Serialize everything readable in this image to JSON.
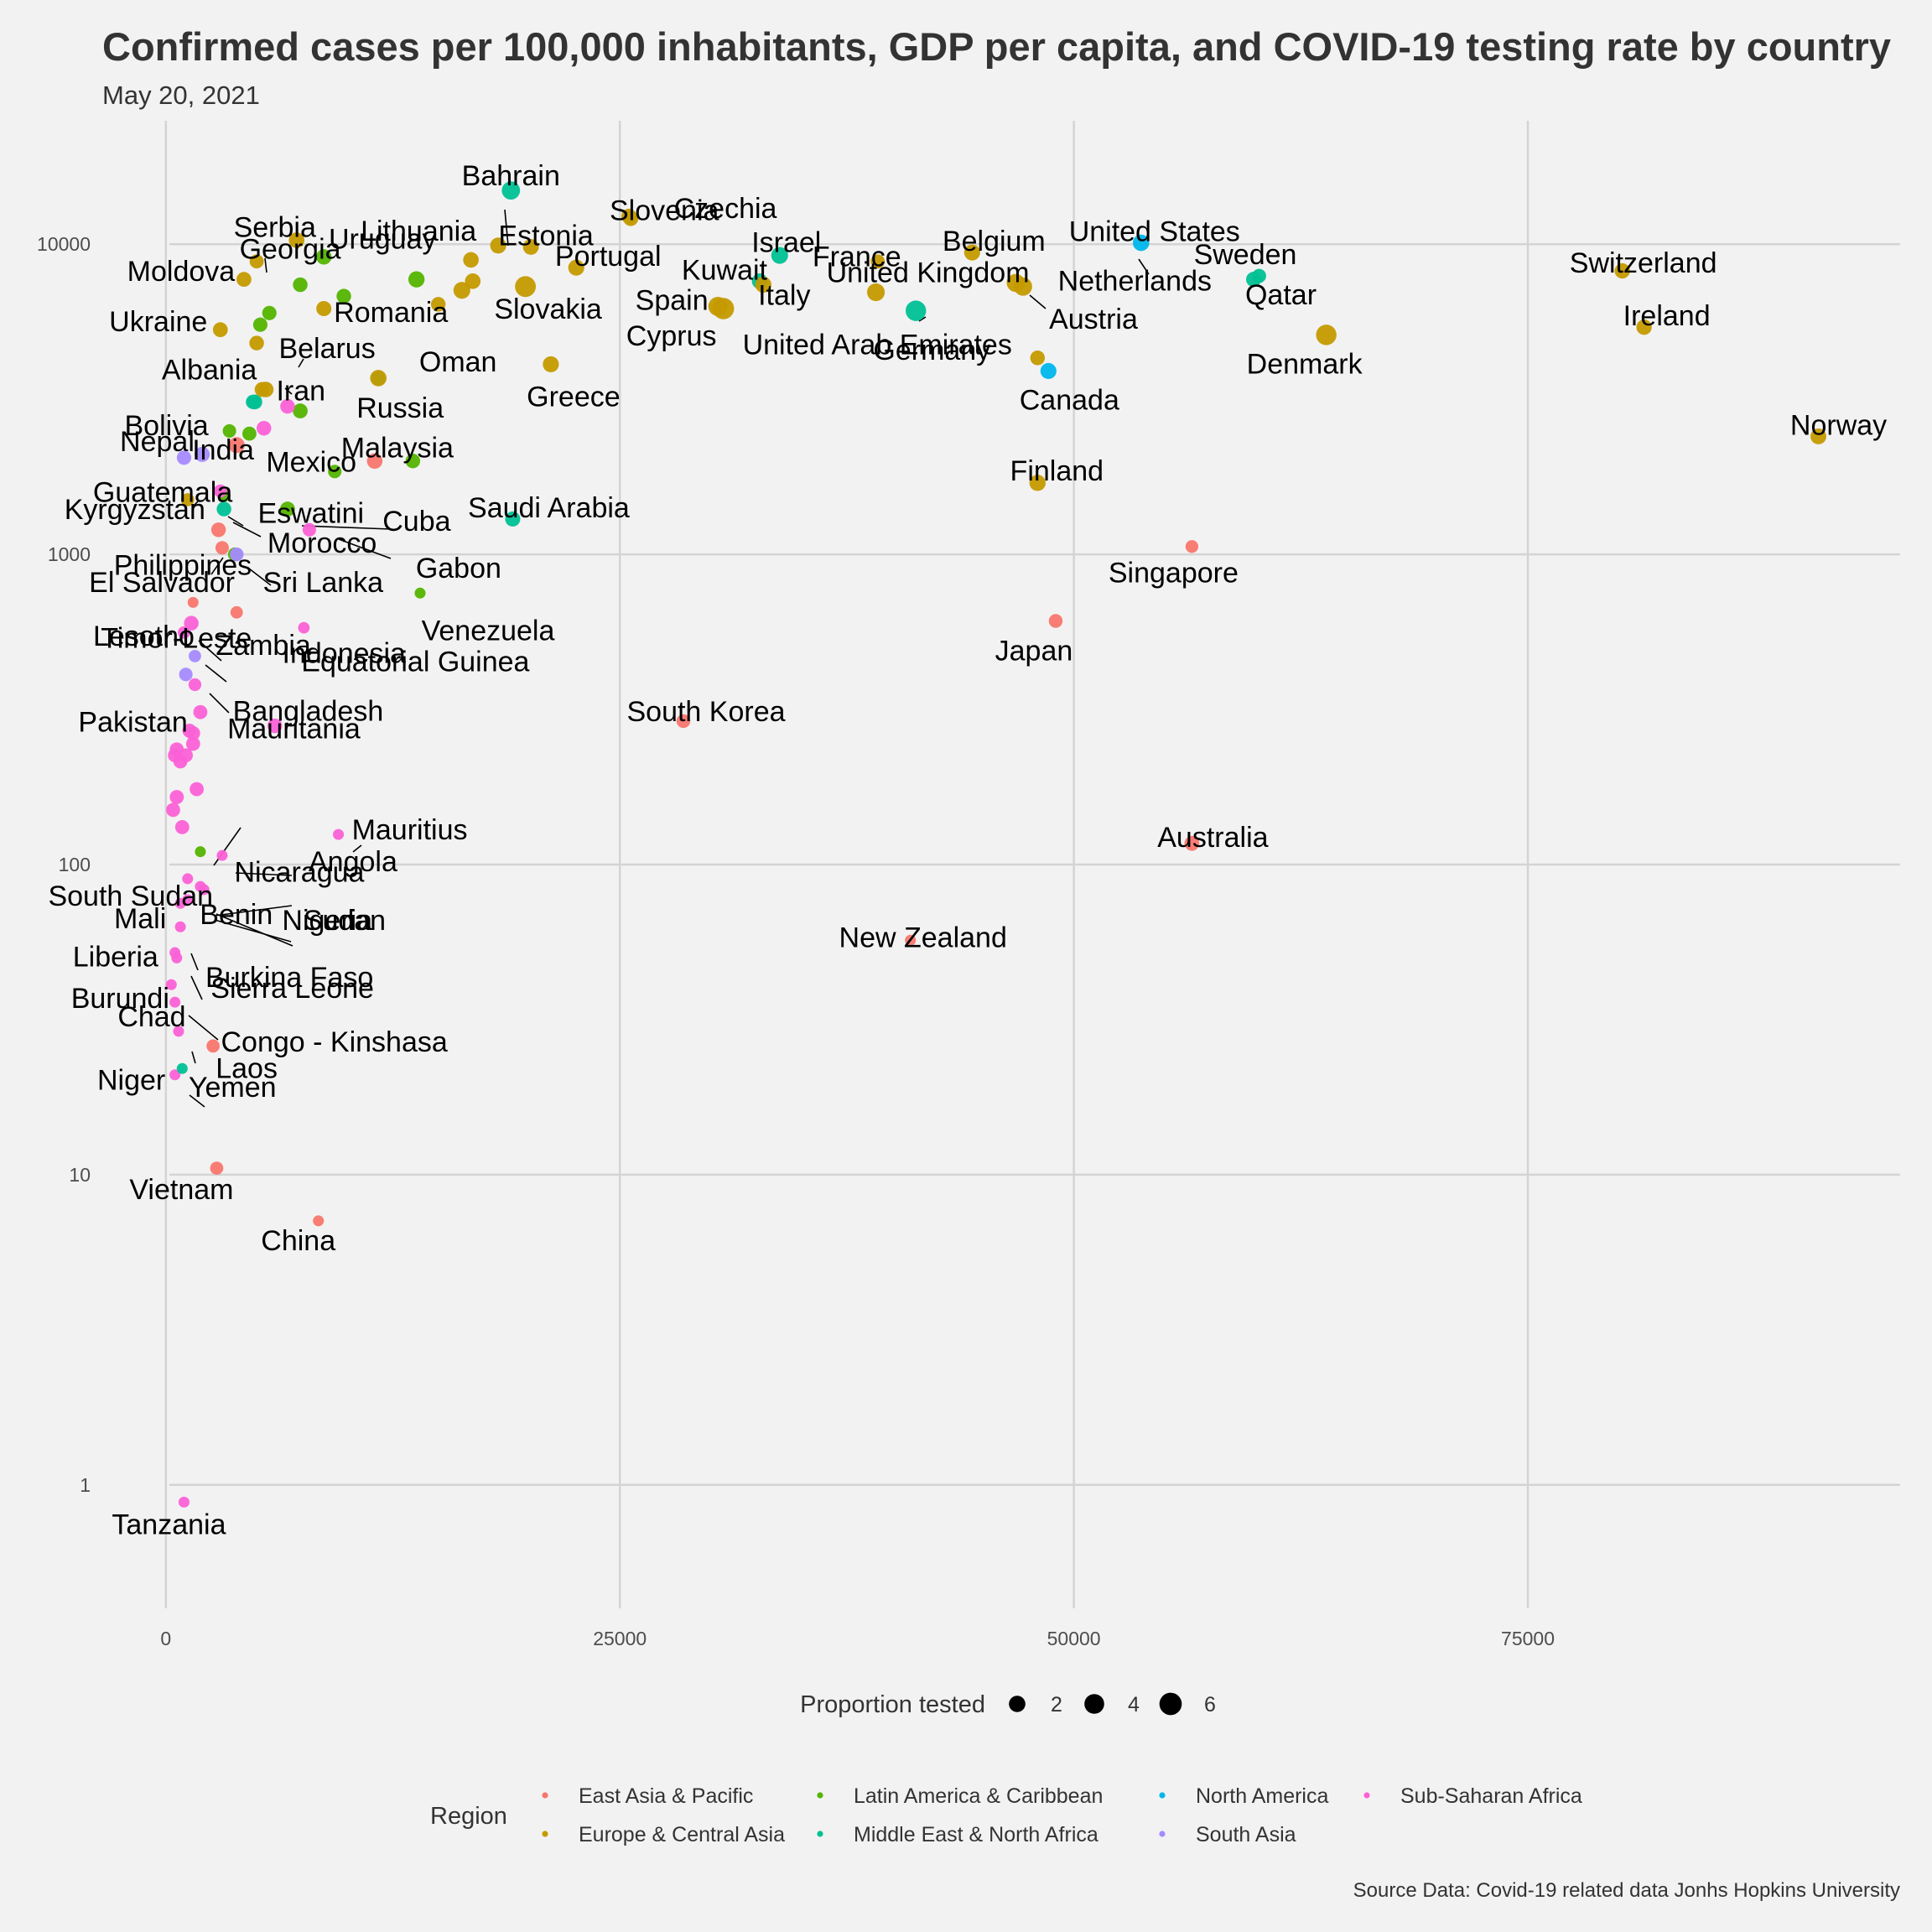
{
  "chart_data": {
    "type": "scatter",
    "title": "Confirmed cases per 100,000 inhabitants, GDP per capita, and COVID-19 testing rate by country",
    "subtitle": "May 20, 2021",
    "xlabel": "",
    "ylabel": "",
    "x_scale": "linear",
    "y_scale": "log10",
    "xlim": [
      -3500,
      95500
    ],
    "ylim": [
      0.4,
      25000
    ],
    "x_ticks": [
      0,
      25000,
      50000,
      75000
    ],
    "y_ticks": [
      1,
      10,
      100,
      1000,
      10000
    ],
    "grid": true,
    "size_legend": {
      "title": "Proportion tested",
      "values": [
        2,
        4,
        6
      ]
    },
    "color_legend": {
      "title": "Region",
      "position": "bottom",
      "entries": [
        {
          "name": "East Asia & Pacific",
          "color": "#F8766D"
        },
        {
          "name": "Europe & Central Asia",
          "color": "#C49A00"
        },
        {
          "name": "Latin America & Caribbean",
          "color": "#53B400"
        },
        {
          "name": "Middle East & North Africa",
          "color": "#00C094"
        },
        {
          "name": "North America",
          "color": "#00B6EB"
        },
        {
          "name": "South Asia",
          "color": "#A58AFF"
        },
        {
          "name": "Sub-Saharan Africa",
          "color": "#FB61D7"
        }
      ]
    },
    "caption": "Source Data: Covid-19 related data Jonhs Hopkins University",
    "labeled_points": [
      {
        "name": "Bahrain",
        "region": 3,
        "x": 19000,
        "y": 14900,
        "tested": 3.0
      },
      {
        "name": "Czechia",
        "region": 1,
        "x": 25500,
        "y": 12300,
        "tested": 1.4
      },
      {
        "name": "Slovenia",
        "region": 1,
        "x": 25600,
        "y": 12100,
        "tested": 1.4
      },
      {
        "name": "Lithuania",
        "region": 1,
        "x": 18300,
        "y": 9900,
        "tested": 1.8
      },
      {
        "name": "Estonia",
        "region": 1,
        "x": 20100,
        "y": 9800,
        "tested": 1.7
      },
      {
        "name": "Serbia",
        "region": 1,
        "x": 7200,
        "y": 10300,
        "tested": 1.6
      },
      {
        "name": "Uruguay",
        "region": 2,
        "x": 8700,
        "y": 9100,
        "tested": 1.5
      },
      {
        "name": "Portugal",
        "region": 1,
        "x": 22600,
        "y": 8400,
        "tested": 1.8
      },
      {
        "name": "Israel",
        "region": 3,
        "x": 33800,
        "y": 9200,
        "tested": 2.2
      },
      {
        "name": "Kuwait",
        "region": 3,
        "x": 32700,
        "y": 7600,
        "tested": 1.6
      },
      {
        "name": "Belgium",
        "region": 1,
        "x": 44400,
        "y": 9400,
        "tested": 1.8
      },
      {
        "name": "United States",
        "region": 4,
        "x": 53700,
        "y": 10100,
        "tested": 2.0
      },
      {
        "name": "Sweden",
        "region": 3,
        "x": 59900,
        "y": 7700,
        "tested": 1.4
      },
      {
        "name": "Switzerland",
        "region": 1,
        "x": 80200,
        "y": 8200,
        "tested": 1.5
      },
      {
        "name": "France",
        "region": 1,
        "x": 39200,
        "y": 8800,
        "tested": 1.0
      },
      {
        "name": "Moldova",
        "region": 1,
        "x": 4300,
        "y": 7700,
        "tested": 1.3
      },
      {
        "name": "Georgia",
        "region": 1,
        "x": 5000,
        "y": 8800,
        "tested": 1.0
      },
      {
        "name": "Netherlands",
        "region": 1,
        "x": 46800,
        "y": 7500,
        "tested": 2.9
      },
      {
        "name": "Spain",
        "region": 1,
        "x": 30400,
        "y": 6300,
        "tested": 3.6
      },
      {
        "name": "Italy",
        "region": 1,
        "x": 32900,
        "y": 7400,
        "tested": 1.9
      },
      {
        "name": "United Kingdom",
        "region": 1,
        "x": 39100,
        "y": 7000,
        "tested": 2.7
      },
      {
        "name": "Romania",
        "region": 1,
        "x": 8700,
        "y": 6200,
        "tested": 1.4
      },
      {
        "name": "Slovakia",
        "region": 1,
        "x": 19800,
        "y": 7300,
        "tested": 4.8
      },
      {
        "name": "Qatar",
        "region": 3,
        "x": 60200,
        "y": 7900,
        "tested": 1.0
      },
      {
        "name": "Austria",
        "region": 1,
        "x": 47200,
        "y": 7300,
        "tested": 3.0
      },
      {
        "name": "Cyprus",
        "region": 1,
        "x": 30700,
        "y": 6200,
        "tested": 5.2
      },
      {
        "name": "United Arab Emirates",
        "region": 3,
        "x": 41300,
        "y": 6100,
        "tested": 4.5
      },
      {
        "name": "Ukraine",
        "region": 1,
        "x": 3000,
        "y": 5300,
        "tested": 1.3
      },
      {
        "name": "Belarus",
        "region": 1,
        "x": 5000,
        "y": 4800,
        "tested": 1.2
      },
      {
        "name": "Ireland",
        "region": 1,
        "x": 81400,
        "y": 5400,
        "tested": 1.5
      },
      {
        "name": "Denmark",
        "region": 1,
        "x": 63900,
        "y": 5100,
        "tested": 4.5
      },
      {
        "name": "Albania",
        "region": 1,
        "x": 5300,
        "y": 3400,
        "tested": 1.3
      },
      {
        "name": "Oman",
        "region": 3,
        "x": 11700,
        "y": 3700,
        "tested": 1.0
      },
      {
        "name": "Greece",
        "region": 1,
        "x": 21200,
        "y": 4100,
        "tested": 1.8
      },
      {
        "name": "Germany",
        "region": 1,
        "x": 48000,
        "y": 4300,
        "tested": 1.2
      },
      {
        "name": "Iran",
        "region": 3,
        "x": 4800,
        "y": 3100,
        "tested": 1.1
      },
      {
        "name": "Russia",
        "region": 1,
        "x": 11700,
        "y": 3700,
        "tested": 2.0
      },
      {
        "name": "Canada",
        "region": 4,
        "x": 48600,
        "y": 3900,
        "tested": 1.8
      },
      {
        "name": "Bolivia",
        "region": 2,
        "x": 3500,
        "y": 2500,
        "tested": 0.8
      },
      {
        "name": "Norway",
        "region": 1,
        "x": 91000,
        "y": 2400,
        "tested": 1.7
      },
      {
        "name": "Nepal",
        "region": 5,
        "x": 1000,
        "y": 2050,
        "tested": 1.1
      },
      {
        "name": "India",
        "region": 5,
        "x": 2000,
        "y": 2100,
        "tested": 1.4
      },
      {
        "name": "Mexico",
        "region": 2,
        "x": 9300,
        "y": 1850,
        "tested": 0.8
      },
      {
        "name": "Malaysia",
        "region": 0,
        "x": 11500,
        "y": 2000,
        "tested": 1.6
      },
      {
        "name": "Finland",
        "region": 1,
        "x": 48000,
        "y": 1700,
        "tested": 1.9
      },
      {
        "name": "Guatemala",
        "region": 2,
        "x": 3200,
        "y": 1550,
        "tested": 0.8
      },
      {
        "name": "Eswatini",
        "region": 6,
        "x": 3000,
        "y": 1600,
        "tested": 0.7
      },
      {
        "name": "Kyrgyzstan",
        "region": 1,
        "x": 1200,
        "y": 1500,
        "tested": 0.7
      },
      {
        "name": "Cuba",
        "region": 2,
        "x": 6700,
        "y": 1400,
        "tested": 1.3
      },
      {
        "name": "Saudi Arabia",
        "region": 3,
        "x": 19100,
        "y": 1300,
        "tested": 1.4
      },
      {
        "name": "Morocco",
        "region": 3,
        "x": 3200,
        "y": 1400,
        "tested": 1.2
      },
      {
        "name": "Gabon",
        "region": 6,
        "x": 7900,
        "y": 1200,
        "tested": 0.8
      },
      {
        "name": "Philippines",
        "region": 0,
        "x": 3100,
        "y": 1050,
        "tested": 0.8
      },
      {
        "name": "Singapore",
        "region": 0,
        "x": 56500,
        "y": 1060,
        "tested": 0.6
      },
      {
        "name": "El Salvador",
        "region": 2,
        "x": 3800,
        "y": 1000,
        "tested": 0.9
      },
      {
        "name": "Sri Lanka",
        "region": 5,
        "x": 3900,
        "y": 1000,
        "tested": 0.9
      },
      {
        "name": "Venezuela",
        "region": 2,
        "x": 14000,
        "y": 750,
        "tested": 0.2
      },
      {
        "name": "Timor-Leste",
        "region": 0,
        "x": 1500,
        "y": 700,
        "tested": 0.2
      },
      {
        "name": "Indonesia",
        "region": 0,
        "x": 3900,
        "y": 650,
        "tested": 0.5
      },
      {
        "name": "Equatorial Guinea",
        "region": 6,
        "x": 7600,
        "y": 580,
        "tested": 0.3
      },
      {
        "name": "Japan",
        "region": 0,
        "x": 49000,
        "y": 610,
        "tested": 0.9
      },
      {
        "name": "Lesotho",
        "region": 6,
        "x": 1000,
        "y": 560,
        "tested": 0.5
      },
      {
        "name": "Zambia",
        "region": 6,
        "x": 1400,
        "y": 600,
        "tested": 1.2
      },
      {
        "name": "Bangladesh",
        "region": 5,
        "x": 1600,
        "y": 470,
        "tested": 0.5
      },
      {
        "name": "Pakistan",
        "region": 5,
        "x": 1100,
        "y": 410,
        "tested": 0.8
      },
      {
        "name": "Mauritania",
        "region": 6,
        "x": 1600,
        "y": 380,
        "tested": 0.6
      },
      {
        "name": "South Korea",
        "region": 0,
        "x": 28500,
        "y": 290,
        "tested": 0.9
      },
      {
        "name": "Nicaragua",
        "region": 2,
        "x": 1900,
        "y": 110,
        "tested": 0.2
      },
      {
        "name": "Mauritius",
        "region": 6,
        "x": 9500,
        "y": 125,
        "tested": 0.2
      },
      {
        "name": "Australia",
        "region": 0,
        "x": 56500,
        "y": 117,
        "tested": 1.3
      },
      {
        "name": "Angola",
        "region": 6,
        "x": 3100,
        "y": 107,
        "tested": 0.2
      },
      {
        "name": "South Sudan",
        "region": 6,
        "x": 1200,
        "y": 90,
        "tested": 0.2
      },
      {
        "name": "Sudan",
        "region": 6,
        "x": 1900,
        "y": 85,
        "tested": 0.2
      },
      {
        "name": "Mali",
        "region": 6,
        "x": 800,
        "y": 75,
        "tested": 0.2
      },
      {
        "name": "Benin",
        "region": 6,
        "x": 1200,
        "y": 77,
        "tested": 0.2
      },
      {
        "name": "Nigeria",
        "region": 6,
        "x": 2100,
        "y": 83,
        "tested": 0.2
      },
      {
        "name": "New Zealand",
        "region": 0,
        "x": 41000,
        "y": 57,
        "tested": 0.2
      },
      {
        "name": "Burkina Faso",
        "region": 6,
        "x": 800,
        "y": 63,
        "tested": 0.2
      },
      {
        "name": "Sierra Leone",
        "region": 6,
        "x": 500,
        "y": 52,
        "tested": 0.2
      },
      {
        "name": "Liberia",
        "region": 6,
        "x": 600,
        "y": 50,
        "tested": 0.2
      },
      {
        "name": "Congo - Kinshasa",
        "region": 6,
        "x": 500,
        "y": 36,
        "tested": 0.2
      },
      {
        "name": "Burundi",
        "region": 6,
        "x": 300,
        "y": 41,
        "tested": 0.2
      },
      {
        "name": "Chad",
        "region": 6,
        "x": 700,
        "y": 29,
        "tested": 0.2
      },
      {
        "name": "Laos",
        "region": 0,
        "x": 2600,
        "y": 26,
        "tested": 0.7
      },
      {
        "name": "Niger",
        "region": 6,
        "x": 500,
        "y": 21,
        "tested": 0.2
      },
      {
        "name": "Yemen",
        "region": 3,
        "x": 900,
        "y": 22,
        "tested": 0.2
      },
      {
        "name": "Vietnam",
        "region": 0,
        "x": 2800,
        "y": 10.5,
        "tested": 0.7
      },
      {
        "name": "China",
        "region": 0,
        "x": 8400,
        "y": 7.1,
        "tested": 0.2
      },
      {
        "name": "Tanzania",
        "region": 6,
        "x": 1000,
        "y": 0.88,
        "tested": 0.2
      }
    ],
    "unlabeled_points": [
      {
        "region": 1,
        "x": 16800,
        "y": 8900,
        "tested": 1.6
      },
      {
        "region": 2,
        "x": 13800,
        "y": 7700,
        "tested": 1.9
      },
      {
        "region": 1,
        "x": 16900,
        "y": 7600,
        "tested": 1.6
      },
      {
        "region": 1,
        "x": 16300,
        "y": 7100,
        "tested": 2.2
      },
      {
        "region": 2,
        "x": 7400,
        "y": 7400,
        "tested": 1.2
      },
      {
        "region": 2,
        "x": 9800,
        "y": 6800,
        "tested": 1.2
      },
      {
        "region": 1,
        "x": 15000,
        "y": 6400,
        "tested": 1.2
      },
      {
        "region": 2,
        "x": 5700,
        "y": 6000,
        "tested": 1.1
      },
      {
        "region": 2,
        "x": 5200,
        "y": 5500,
        "tested": 1.1
      },
      {
        "region": 1,
        "x": 5500,
        "y": 3400,
        "tested": 1.6
      },
      {
        "region": 3,
        "x": 4900,
        "y": 3100,
        "tested": 1.3
      },
      {
        "region": 2,
        "x": 7400,
        "y": 2900,
        "tested": 1.3
      },
      {
        "region": 6,
        "x": 6700,
        "y": 3000,
        "tested": 1.2
      },
      {
        "region": 6,
        "x": 5400,
        "y": 2550,
        "tested": 1.2
      },
      {
        "region": 2,
        "x": 4600,
        "y": 2450,
        "tested": 1.0
      },
      {
        "region": 0,
        "x": 3900,
        "y": 2250,
        "tested": 1.8
      },
      {
        "region": 2,
        "x": 13600,
        "y": 2000,
        "tested": 1.2
      },
      {
        "region": 0,
        "x": 2900,
        "y": 1200,
        "tested": 1.2
      },
      {
        "region": 6,
        "x": 1900,
        "y": 310,
        "tested": 1.0
      },
      {
        "region": 6,
        "x": 6000,
        "y": 280,
        "tested": 1.2
      },
      {
        "region": 6,
        "x": 1300,
        "y": 270,
        "tested": 1.0
      },
      {
        "region": 6,
        "x": 1500,
        "y": 265,
        "tested": 1.0
      },
      {
        "region": 6,
        "x": 1500,
        "y": 245,
        "tested": 1.0
      },
      {
        "region": 6,
        "x": 600,
        "y": 235,
        "tested": 1.0
      },
      {
        "region": 6,
        "x": 500,
        "y": 225,
        "tested": 1.0
      },
      {
        "region": 6,
        "x": 1100,
        "y": 225,
        "tested": 1.0
      },
      {
        "region": 6,
        "x": 800,
        "y": 215,
        "tested": 1.0
      },
      {
        "region": 6,
        "x": 1700,
        "y": 175,
        "tested": 1.0
      },
      {
        "region": 6,
        "x": 600,
        "y": 165,
        "tested": 1.0
      },
      {
        "region": 6,
        "x": 400,
        "y": 150,
        "tested": 1.0
      },
      {
        "region": 6,
        "x": 900,
        "y": 132,
        "tested": 1.0
      }
    ]
  }
}
